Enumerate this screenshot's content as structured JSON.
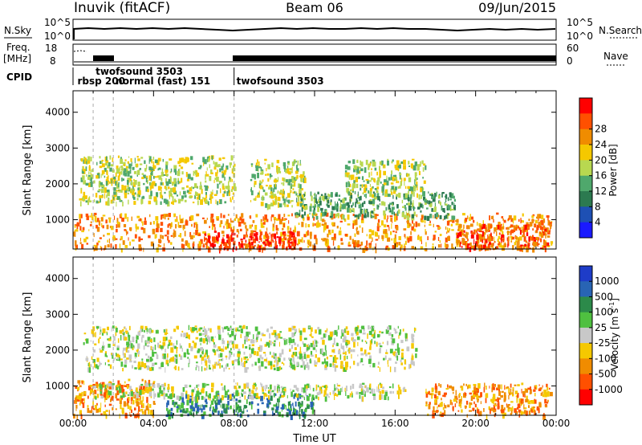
{
  "header": {
    "station": "Inuvik (fitACF)",
    "beam": "Beam 06",
    "date": "09/Jun/2015"
  },
  "noise_panel": {
    "left_label": "N.Sky",
    "right_label": "N.Search",
    "left_ticks": [
      "10^5",
      "10^0"
    ],
    "right_ticks": [
      "10^5",
      "10^0"
    ]
  },
  "freq_panel": {
    "left_label_1": "Freq.",
    "left_label_2": "[MHz]",
    "right_label": "Nave",
    "left_ticks": [
      "18",
      "8"
    ],
    "right_ticks": [
      "60",
      "0"
    ]
  },
  "cpid_panel": {
    "label": "CPID",
    "entries": [
      {
        "text": "rbsp 200",
        "t": 0.1
      },
      {
        "text": "twofsound 3503",
        "t": 1.0
      },
      {
        "text": "normal (fast) 151",
        "t": 2.0
      },
      {
        "text": "twofsound 3503",
        "t": 8.0
      }
    ]
  },
  "chart_data": [
    {
      "type": "heatmap",
      "name": "power",
      "ylabel": "Slant Range [km]",
      "yticks": [
        "1000",
        "2000",
        "3000",
        "4000"
      ],
      "ylim": [
        180,
        4600
      ],
      "xlim": [
        0,
        24
      ],
      "colorbar_title": "Power [dB]",
      "colorbar_ticks": [
        "4",
        "8",
        "12",
        "16",
        "20",
        "24",
        "28"
      ],
      "colors": [
        "#1a1aff",
        "#1e50b4",
        "#2c7a50",
        "#4fa86c",
        "#b8d850",
        "#f5c800",
        "#f08c00",
        "#ff5000",
        "#ff0000"
      ],
      "dashed_lines_hours": [
        1.0,
        2.0,
        8.0
      ],
      "regions": [
        {
          "t0": 0.0,
          "t1": 23.8,
          "r0": 200,
          "r1": 1200,
          "level": 6
        },
        {
          "t0": 6.5,
          "t1": 11.0,
          "r0": 200,
          "r1": 700,
          "level": 8
        },
        {
          "t0": 19.0,
          "t1": 23.7,
          "r0": 200,
          "r1": 900,
          "level": 7
        },
        {
          "t0": 0.3,
          "t1": 8.0,
          "r0": 1500,
          "r1": 2800,
          "level": 4
        },
        {
          "t0": 8.8,
          "t1": 11.5,
          "r0": 1400,
          "r1": 2700,
          "level": 4
        },
        {
          "t0": 13.5,
          "t1": 17.5,
          "r0": 1700,
          "r1": 2700,
          "level": 4
        },
        {
          "t0": 11.0,
          "t1": 19.0,
          "r0": 1100,
          "r1": 1800,
          "level": 3
        }
      ]
    },
    {
      "type": "heatmap",
      "name": "velocity",
      "xlabel": "Time UT",
      "ylabel": "Slant Range [km]",
      "xticks": [
        "00:00",
        "04:00",
        "08:00",
        "12:00",
        "16:00",
        "20:00",
        "00:00"
      ],
      "yticks": [
        "1000",
        "2000",
        "3000",
        "4000"
      ],
      "ylim": [
        180,
        4600
      ],
      "xlim": [
        0,
        24
      ],
      "colorbar_title": "Velocity [m s",
      "colorbar_title_sup": "-1",
      "colorbar_title_tail": "]",
      "colorbar_ticks": [
        "1000",
        "500",
        "100",
        "25",
        "-25",
        "-100",
        "-500",
        "-1000"
      ],
      "colors": [
        "#1e3cc8",
        "#2864b4",
        "#2c8a4a",
        "#4fc040",
        "#c8c8c8",
        "#f5c800",
        "#f08c00",
        "#ff5000",
        "#ff0000"
      ],
      "dashed_lines_hours": [
        1.0,
        2.0,
        8.0
      ],
      "regions": [
        {
          "t0": 0.0,
          "t1": 4.0,
          "r0": 200,
          "r1": 1200,
          "level": 6
        },
        {
          "t0": 0.5,
          "t1": 17.0,
          "r0": 1500,
          "r1": 2700,
          "level": 4
        },
        {
          "t0": 4.5,
          "t1": 12.0,
          "r0": 200,
          "r1": 800,
          "level": 2
        },
        {
          "t0": 1.0,
          "t1": 16.5,
          "r0": 700,
          "r1": 1100,
          "level": 4
        },
        {
          "t0": 17.5,
          "t1": 23.7,
          "r0": 200,
          "r1": 1100,
          "level": 6
        }
      ]
    }
  ]
}
